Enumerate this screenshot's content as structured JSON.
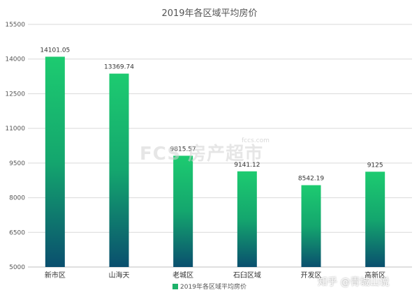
{
  "chart_data": {
    "type": "bar",
    "title": "2019年各区域平均房价",
    "categories": [
      "新市区",
      "山海天",
      "老城区",
      "石臼区域",
      "开发区",
      "高新区"
    ],
    "series": [
      {
        "name": "2019年各区域平均房价",
        "values": [
          14101.05,
          13369.74,
          9815.57,
          9141.12,
          8542.19,
          9125
        ]
      }
    ],
    "data_labels": [
      "14101.05",
      "13369.74",
      "9815.57",
      "9141.12",
      "8542.19",
      "9125"
    ],
    "yticks": [
      "5000",
      "6500",
      "8000",
      "9500",
      "11000",
      "12500",
      "14000",
      "15500"
    ],
    "ylim": [
      5000,
      15500
    ],
    "grid": true,
    "legend_position": "bottom",
    "colors": {
      "bar_top": "#1dcb70",
      "bar_bottom": "#0a4f6e",
      "grid": "#d9d9d9",
      "axis": "#bfbfbf"
    }
  },
  "watermarks": {
    "logo": "FCS 房产超市",
    "site": "fccs.com",
    "zhihu": "知乎 @青城山说"
  }
}
